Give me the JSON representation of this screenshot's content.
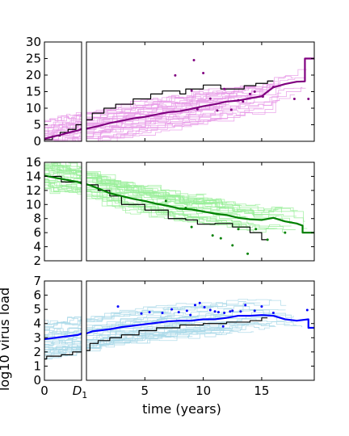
{
  "chart_data": [
    {
      "type": "line",
      "panel": "top",
      "ylabel": "",
      "ylim": [
        0,
        30
      ],
      "yticks": [
        "0",
        "5",
        "10",
        "15",
        "20",
        "25",
        "30"
      ],
      "xlim": [
        0,
        19.5
      ],
      "colors": {
        "mean": "#800080",
        "individual": "#e89ae8",
        "highlight": "#000000"
      },
      "left_mean": {
        "x": [
          0,
          0.5,
          1,
          1.5,
          2,
          2.5,
          3,
          3.3
        ],
        "y": [
          0.8,
          1.2,
          1.6,
          2.0,
          2.5,
          2.9,
          3.3,
          3.7
        ]
      },
      "left_highlight": {
        "x": [
          0,
          0.7,
          0.7,
          1.4,
          1.4,
          2.1,
          2.1,
          2.8,
          2.8,
          3.3
        ],
        "y": [
          0.5,
          0.5,
          1.6,
          1.6,
          2.7,
          2.7,
          3.6,
          3.6,
          5.0,
          5.0
        ]
      },
      "mean": {
        "x": [
          0,
          1,
          2,
          3,
          4,
          5,
          6,
          7,
          8,
          9,
          10,
          11,
          12,
          13,
          14,
          15,
          15.5,
          16,
          17,
          18,
          18.7,
          18.7,
          19.5
        ],
        "y": [
          3.8,
          4.6,
          5.5,
          6.2,
          6.9,
          7.4,
          8.1,
          8.8,
          9.1,
          9.8,
          10.6,
          11.2,
          12.0,
          12.3,
          13.0,
          13.6,
          15.0,
          16.3,
          17.3,
          18.0,
          18.1,
          25.0,
          25.0
        ]
      },
      "highlight": {
        "x": [
          0,
          0.5,
          0.5,
          1.5,
          1.5,
          2.5,
          2.5,
          4,
          4,
          5.5,
          5.5,
          6.5,
          6.5,
          8,
          8,
          8.5,
          8.5,
          10,
          10,
          11.5,
          11.5,
          13.5,
          13.5,
          14.5,
          14.5,
          15.5,
          15.5,
          16
        ],
        "y": [
          6.5,
          6.5,
          8.5,
          8.5,
          10,
          10,
          11.2,
          11.2,
          12.8,
          12.8,
          14.3,
          14.3,
          15.2,
          15.2,
          14.3,
          14.3,
          15.8,
          15.8,
          17.0,
          17.0,
          15.8,
          15.8,
          16.8,
          16.8,
          17.5,
          17.5,
          18.2,
          18.2
        ]
      },
      "points": {
        "x": [
          10,
          10.6,
          11.2,
          11.8,
          12.4,
          9.5,
          13,
          13.4,
          14,
          14.4,
          15.1,
          9.2,
          7.6,
          9,
          16,
          17.8,
          19
        ],
        "y": [
          20.6,
          12.9,
          9.3,
          15.8,
          9.5,
          9.7,
          12.4,
          12.0,
          14.3,
          15.0,
          13.5,
          24.5,
          19.9,
          15.3,
          16.4,
          12.8,
          12.8
        ]
      }
    },
    {
      "type": "line",
      "panel": "middle",
      "ylabel": "",
      "ylim": [
        2,
        16
      ],
      "yticks": [
        "2",
        "4",
        "6",
        "8",
        "10",
        "12",
        "14",
        "16"
      ],
      "xlim": [
        0,
        19.5
      ],
      "colors": {
        "mean": "#008000",
        "individual": "#99ee99",
        "highlight": "#000000"
      },
      "left_mean": {
        "x": [
          0,
          1,
          2,
          3,
          3.3
        ],
        "y": [
          14.1,
          13.8,
          13.5,
          13.2,
          13.0
        ]
      },
      "left_highlight": {
        "x": [
          0,
          1.5,
          1.5,
          3.3
        ],
        "y": [
          14.0,
          14.0,
          13.2,
          13.2
        ]
      },
      "mean": {
        "x": [
          0,
          1,
          2,
          3,
          4,
          5,
          6,
          7,
          8,
          9,
          10,
          11,
          12,
          13,
          14,
          15,
          16,
          17,
          18,
          18.5,
          18.5,
          19.5
        ],
        "y": [
          12.9,
          12.3,
          11.6,
          11.2,
          10.8,
          10.5,
          10.1,
          9.8,
          9.4,
          9.3,
          9.0,
          8.7,
          8.5,
          8.1,
          7.9,
          7.8,
          8.1,
          7.6,
          7.3,
          7.0,
          6.0,
          6.0
        ]
      },
      "highlight": {
        "x": [
          0,
          1,
          1,
          2,
          2,
          3,
          3,
          5,
          5,
          7,
          7,
          8.5,
          8.5,
          9.5,
          9.5,
          11,
          11,
          12.5,
          12.5,
          14,
          14,
          15,
          15,
          15.5
        ],
        "y": [
          12.8,
          12.8,
          12.0,
          12.0,
          11.2,
          11.2,
          10.0,
          10.0,
          9.2,
          9.2,
          8.0,
          8.0,
          7.8,
          7.8,
          7.2,
          7.2,
          7.3,
          7.3,
          6.8,
          6.8,
          6.0,
          6.0,
          5.0,
          5.0
        ]
      },
      "points": {
        "x": [
          6.8,
          8.5,
          9,
          11.5,
          12.5,
          13,
          14.5,
          15.5,
          17,
          10.8,
          13.8
        ],
        "y": [
          10.5,
          9.5,
          6.8,
          5.2,
          4.2,
          6.5,
          6.5,
          5.0,
          6.0,
          5.6,
          3.0
        ]
      }
    },
    {
      "type": "line",
      "panel": "bottom",
      "ylabel": "log10 virus load",
      "xlabel": "time (years)",
      "ylim": [
        0,
        7
      ],
      "yticks": [
        "0",
        "1",
        "2",
        "3",
        "4",
        "5",
        "6",
        "7"
      ],
      "xlim": [
        0,
        19.5
      ],
      "xticks": [
        "5",
        "10",
        "15"
      ],
      "left_xticks": [
        "0",
        "D1"
      ],
      "colors": {
        "mean": "#0000ff",
        "individual": "#a8d8e8",
        "highlight": "#000000"
      },
      "left_mean": {
        "x": [
          0,
          1,
          2,
          3,
          3.3
        ],
        "y": [
          2.9,
          3.0,
          3.1,
          3.2,
          3.3
        ]
      },
      "left_highlight": {
        "x": [
          0,
          0.2,
          0.2,
          1.5,
          1.5,
          2.5,
          2.5,
          3.3
        ],
        "y": [
          1.5,
          1.5,
          1.7,
          1.7,
          1.8,
          1.8,
          2.0,
          2.0
        ]
      },
      "mean": {
        "x": [
          0,
          0.5,
          1,
          2,
          3,
          4,
          5,
          6,
          7,
          8,
          9,
          10,
          11,
          12,
          13,
          14,
          15,
          16,
          17,
          18,
          19,
          19,
          19.5
        ],
        "y": [
          3.3,
          3.45,
          3.5,
          3.6,
          3.75,
          3.85,
          3.95,
          4.05,
          4.15,
          4.2,
          4.2,
          4.3,
          4.3,
          4.4,
          4.55,
          4.55,
          4.6,
          4.55,
          4.3,
          4.2,
          4.3,
          3.7,
          3.7
        ]
      },
      "highlight": {
        "x": [
          0,
          0.3,
          0.3,
          1,
          1,
          2,
          2,
          3,
          3,
          4.5,
          4.5,
          6,
          6,
          8,
          8,
          10,
          10,
          12,
          12,
          14,
          14,
          15,
          15,
          15.5
        ],
        "y": [
          2.1,
          2.1,
          2.6,
          2.6,
          2.8,
          2.8,
          3.0,
          3.0,
          3.2,
          3.2,
          3.5,
          3.5,
          3.7,
          3.7,
          3.9,
          3.9,
          4.0,
          4.0,
          4.1,
          4.1,
          4.2,
          4.2,
          4.4,
          4.4
        ]
      },
      "points": {
        "x": [
          2.7,
          4.7,
          5.4,
          6.5,
          7.3,
          7.9,
          8.6,
          8.9,
          9.3,
          9.7,
          10.1,
          10.6,
          11.0,
          11.3,
          11.8,
          12.3,
          12.5,
          13.2,
          13.6,
          14.4,
          15.0,
          16.0,
          18.9,
          11.7
        ],
        "y": [
          5.2,
          4.7,
          4.8,
          4.75,
          5.0,
          4.8,
          4.9,
          4.6,
          5.3,
          5.45,
          5.15,
          4.95,
          4.85,
          4.8,
          4.75,
          4.85,
          4.9,
          4.85,
          5.3,
          4.9,
          5.2,
          4.75,
          4.95,
          3.8
        ]
      }
    }
  ]
}
